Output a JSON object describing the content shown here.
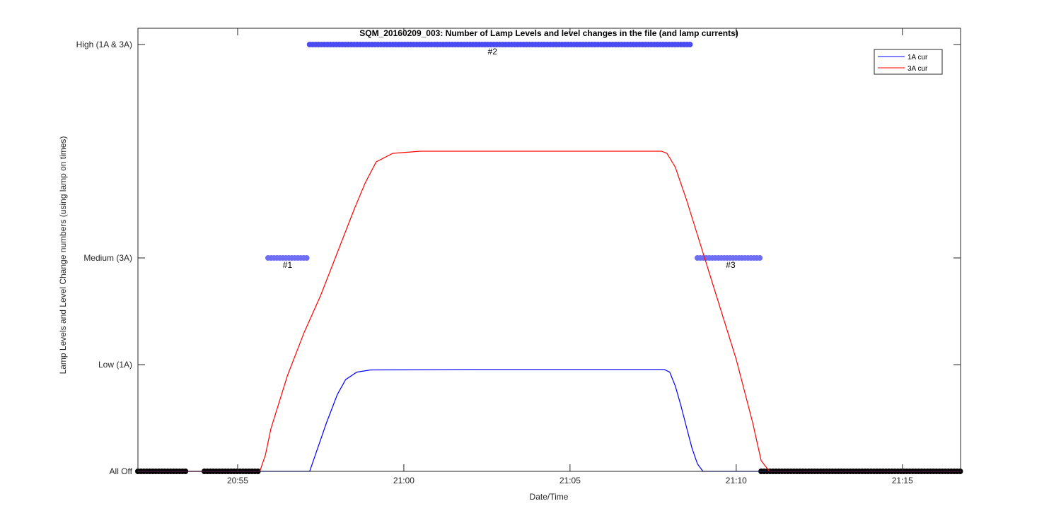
{
  "chart_data": {
    "type": "line",
    "title": "SQM_20160209_003: Number of Lamp Levels and level changes in the file (and lamp currents)",
    "xlabel": "Date/Time",
    "ylabel": "Lamp Levels and Level Change numbers (using lamp on times)",
    "x_ticks": [
      {
        "value": "20:55",
        "label": "20:55"
      },
      {
        "value": "21:00",
        "label": "21:00"
      },
      {
        "value": "21:05",
        "label": "21:05"
      },
      {
        "value": "21:10",
        "label": "21:10"
      },
      {
        "value": "21:15",
        "label": "21:15"
      }
    ],
    "xlim": [
      "20:52:00",
      "21:16:45"
    ],
    "y_ticks": [
      {
        "value": 0,
        "label": "All Off"
      },
      {
        "value": 1,
        "label": "Low (1A)"
      },
      {
        "value": 2,
        "label": "Medium (3A)"
      },
      {
        "value": 3,
        "label": "High (1A & 3A)"
      }
    ],
    "ylim": [
      0,
      4
    ],
    "grid": false,
    "legend_position": "top-right",
    "series": [
      {
        "name": "1A cur",
        "color": "#0000ff",
        "x": [
          "20:52:00",
          "20:57:10",
          "20:57:20",
          "20:57:40",
          "20:58:00",
          "20:58:15",
          "20:58:35",
          "20:59:00",
          "21:02:00",
          "21:05:00",
          "21:07:50",
          "21:08:00",
          "21:08:10",
          "21:08:20",
          "21:08:30",
          "21:08:40",
          "21:08:50",
          "21:09:00",
          "21:16:45"
        ],
        "y": [
          0,
          0,
          0.15,
          0.45,
          0.72,
          0.86,
          0.93,
          0.95,
          0.955,
          0.955,
          0.955,
          0.93,
          0.8,
          0.62,
          0.42,
          0.22,
          0.07,
          0,
          0
        ]
      },
      {
        "name": "3A cur",
        "color": "#ff0000",
        "x": [
          "20:52:00",
          "20:55:40",
          "20:55:50",
          "20:56:00",
          "20:56:30",
          "20:57:00",
          "20:57:30",
          "20:58:00",
          "20:58:30",
          "20:58:50",
          "20:59:10",
          "20:59:40",
          "21:00:30",
          "21:05:00",
          "21:07:45",
          "21:07:55",
          "21:08:10",
          "21:08:30",
          "21:09:00",
          "21:09:30",
          "21:10:00",
          "21:10:30",
          "21:10:45",
          "21:11:00",
          "21:16:45"
        ],
        "y": [
          0,
          0,
          0.15,
          0.4,
          0.9,
          1.3,
          1.65,
          2.05,
          2.45,
          2.7,
          2.9,
          2.98,
          3.0,
          3.0,
          3.0,
          2.98,
          2.85,
          2.55,
          2.05,
          1.55,
          1.05,
          0.45,
          0.1,
          0,
          0
        ]
      }
    ],
    "markers": [
      {
        "name": "All Off",
        "color": "#000000",
        "y": 0,
        "ranges": [
          [
            "20:52:00",
            "20:53:30"
          ],
          [
            "20:54:00",
            "20:55:40"
          ],
          [
            "21:10:45",
            "21:16:45"
          ]
        ]
      },
      {
        "name": "#1",
        "color": "#6e6ef5",
        "y": 2,
        "ranges": [
          [
            "20:55:55",
            "20:57:10"
          ]
        ]
      },
      {
        "name": "#2",
        "color": "#4b4bf2",
        "y": 3,
        "ranges": [
          [
            "20:57:10",
            "21:08:40"
          ]
        ]
      },
      {
        "name": "#3",
        "color": "#6e6ef5",
        "y": 2,
        "ranges": [
          [
            "21:08:50",
            "21:10:45"
          ]
        ]
      }
    ],
    "annotations": [
      {
        "text": "#1",
        "x": "20:56:30",
        "y": 2
      },
      {
        "text": "#2",
        "x": "21:02:40",
        "y": 3
      },
      {
        "text": "#3",
        "x": "21:09:50",
        "y": 2
      }
    ]
  }
}
